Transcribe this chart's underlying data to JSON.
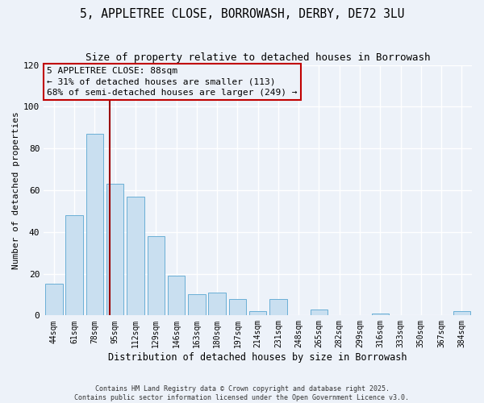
{
  "title": "5, APPLETREE CLOSE, BORROWASH, DERBY, DE72 3LU",
  "subtitle": "Size of property relative to detached houses in Borrowash",
  "xlabel": "Distribution of detached houses by size in Borrowash",
  "ylabel": "Number of detached properties",
  "categories": [
    "44sqm",
    "61sqm",
    "78sqm",
    "95sqm",
    "112sqm",
    "129sqm",
    "146sqm",
    "163sqm",
    "180sqm",
    "197sqm",
    "214sqm",
    "231sqm",
    "248sqm",
    "265sqm",
    "282sqm",
    "299sqm",
    "316sqm",
    "333sqm",
    "350sqm",
    "367sqm",
    "384sqm"
  ],
  "values": [
    15,
    48,
    87,
    63,
    57,
    38,
    19,
    10,
    11,
    8,
    2,
    8,
    0,
    3,
    0,
    0,
    1,
    0,
    0,
    0,
    2
  ],
  "bar_color": "#c9dff0",
  "bar_edge_color": "#6aafd6",
  "vline_color": "#9b0000",
  "vline_x": 2.75,
  "annotation_line1": "5 APPLETREE CLOSE: 88sqm",
  "annotation_line2": "← 31% of detached houses are smaller (113)",
  "annotation_line3": "68% of semi-detached houses are larger (249) →",
  "box_edge_color": "#c00000",
  "ylim": [
    0,
    120
  ],
  "yticks": [
    0,
    20,
    40,
    60,
    80,
    100,
    120
  ],
  "footer_line1": "Contains HM Land Registry data © Crown copyright and database right 2025.",
  "footer_line2": "Contains public sector information licensed under the Open Government Licence v3.0.",
  "background_color": "#edf2f9",
  "grid_color": "#ffffff",
  "title_fontsize": 10.5,
  "subtitle_fontsize": 9,
  "tick_fontsize": 7,
  "ylabel_fontsize": 8,
  "xlabel_fontsize": 8.5,
  "annotation_fontsize": 8,
  "footer_fontsize": 6
}
